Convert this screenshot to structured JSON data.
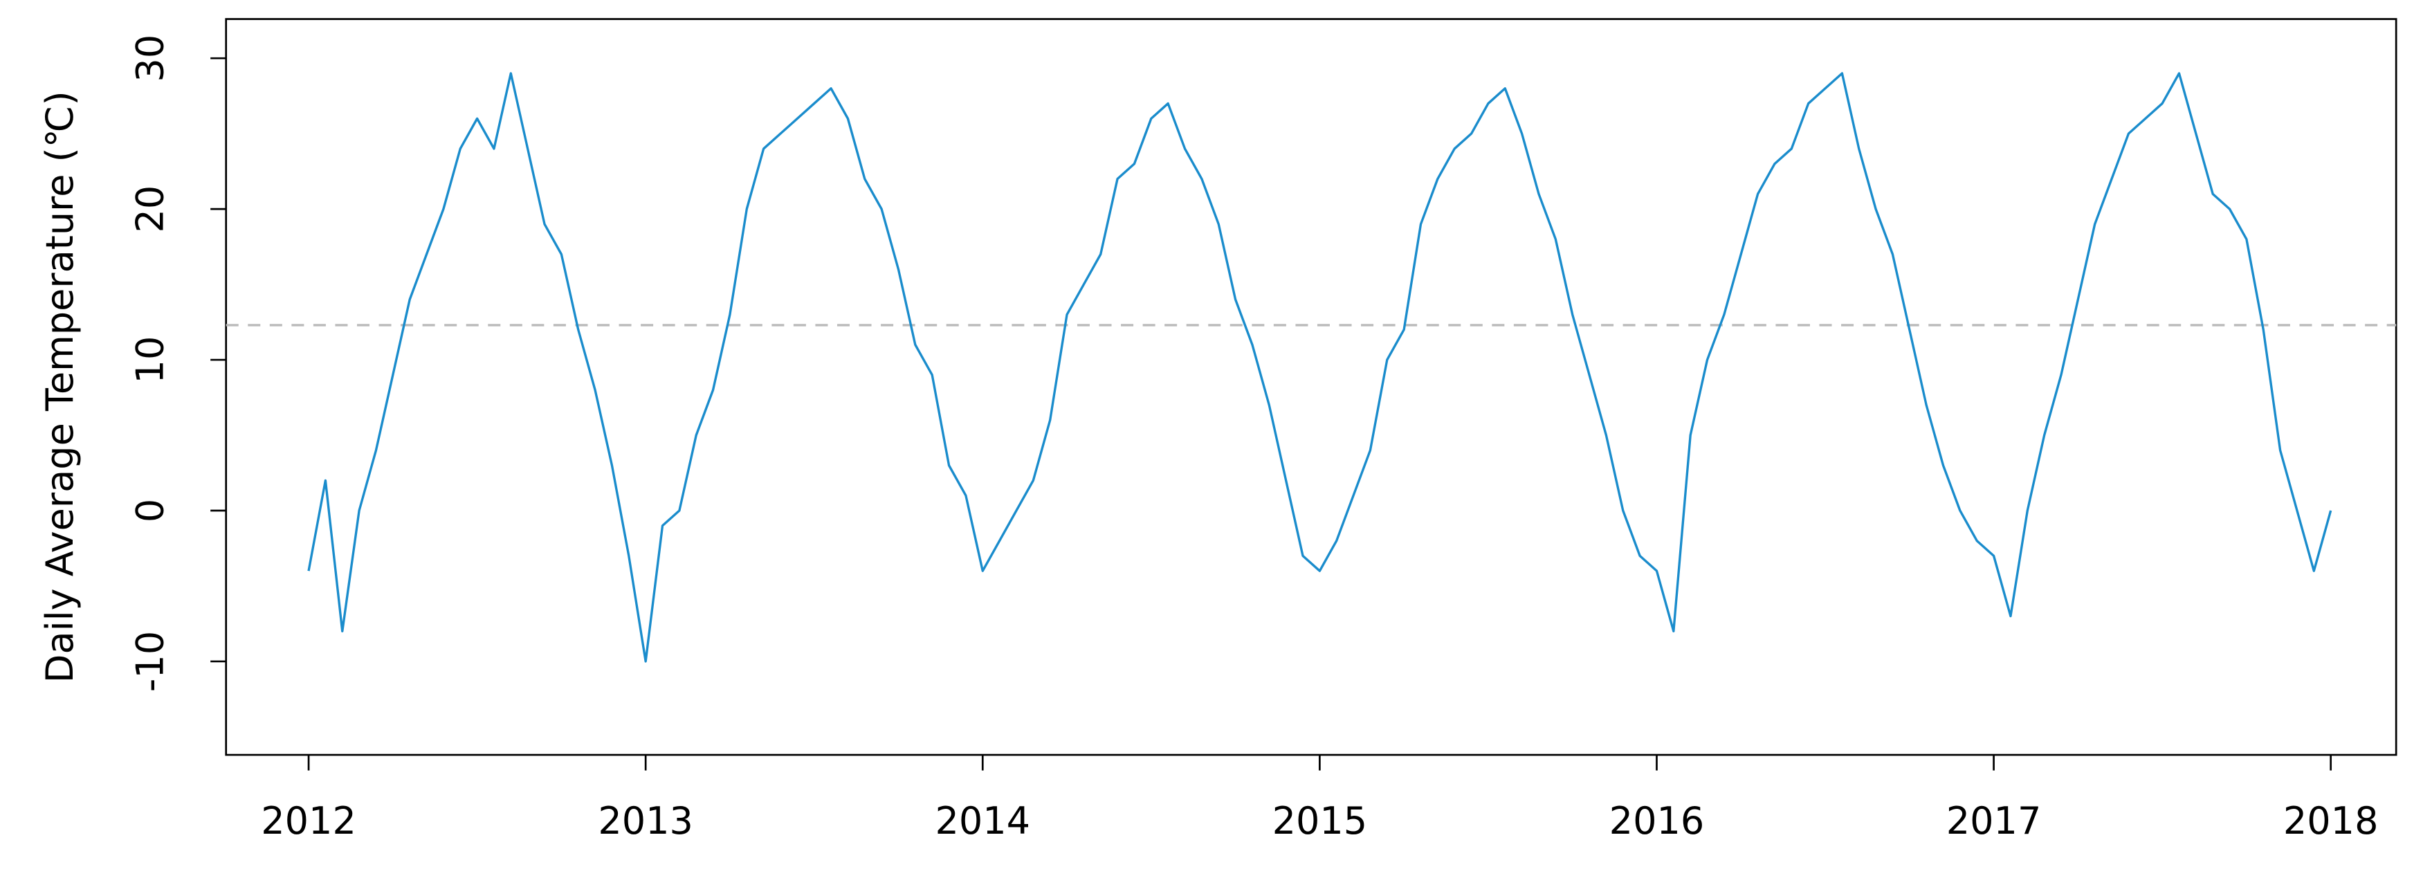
{
  "chart_data": {
    "type": "line",
    "y_label": "Daily Average Temperature (℃)",
    "color": "#1a8ccc",
    "hline": 12.3,
    "hline_color": "#bbbbbb",
    "xlim": [
      2011.755,
      2018.194
    ],
    "ylim": [
      -16.2,
      32.6
    ],
    "xticks": [
      2012,
      2013,
      2014,
      2015,
      2016,
      2017,
      2018
    ],
    "yticks": [
      -10,
      0,
      10,
      20,
      30
    ],
    "x": [
      2012.0,
      2012.05,
      2012.1,
      2012.15,
      2012.2,
      2012.25,
      2012.3,
      2012.35,
      2012.4,
      2012.45,
      2012.5,
      2012.55,
      2012.6,
      2012.65,
      2012.7,
      2012.75,
      2012.8,
      2012.85,
      2012.9,
      2012.95,
      2013.0,
      2013.05,
      2013.1,
      2013.15,
      2013.2,
      2013.25,
      2013.3,
      2013.35,
      2013.4,
      2013.45,
      2013.5,
      2013.55,
      2013.6,
      2013.65,
      2013.7,
      2013.75,
      2013.8,
      2013.85,
      2013.9,
      2013.95,
      2014.0,
      2014.05,
      2014.1,
      2014.15,
      2014.2,
      2014.25,
      2014.3,
      2014.35,
      2014.4,
      2014.45,
      2014.5,
      2014.55,
      2014.6,
      2014.65,
      2014.7,
      2014.75,
      2014.8,
      2014.85,
      2014.9,
      2014.95,
      2015.0,
      2015.05,
      2015.1,
      2015.15,
      2015.2,
      2015.25,
      2015.3,
      2015.35,
      2015.4,
      2015.45,
      2015.5,
      2015.55,
      2015.6,
      2015.65,
      2015.7,
      2015.75,
      2015.8,
      2015.85,
      2015.9,
      2015.95,
      2016.0,
      2016.05,
      2016.1,
      2016.15,
      2016.2,
      2016.25,
      2016.3,
      2016.35,
      2016.4,
      2016.45,
      2016.5,
      2016.55,
      2016.6,
      2016.65,
      2016.7,
      2016.75,
      2016.8,
      2016.85,
      2016.9,
      2016.95,
      2017.0,
      2017.05,
      2017.1,
      2017.15,
      2017.2,
      2017.25,
      2017.3,
      2017.35,
      2017.4,
      2017.45,
      2017.5,
      2017.55,
      2017.6,
      2017.65,
      2017.7,
      2017.75,
      2017.8,
      2017.85,
      2017.9,
      2017.95,
      2018.0
    ],
    "values": [
      -4,
      2,
      -8,
      0,
      4,
      9,
      14,
      17,
      20,
      24,
      26,
      24,
      29,
      24,
      19,
      17,
      12,
      8,
      3,
      -3,
      -10,
      -1,
      0,
      5,
      8,
      13,
      20,
      24,
      25,
      26,
      27,
      28,
      26,
      22,
      20,
      16,
      11,
      9,
      3,
      1,
      -4,
      -2,
      0,
      2,
      6,
      13,
      15,
      17,
      22,
      23,
      26,
      27,
      24,
      22,
      19,
      14,
      11,
      7,
      2,
      -3,
      -4,
      -2,
      1,
      4,
      10,
      12,
      19,
      22,
      24,
      25,
      27,
      28,
      25,
      21,
      18,
      13,
      9,
      5,
      0,
      -3,
      -4,
      -8,
      5,
      10,
      13,
      17,
      21,
      23,
      24,
      27,
      28,
      29,
      24,
      20,
      17,
      12,
      7,
      3,
      0,
      -2,
      -3,
      -7,
      0,
      5,
      9,
      14,
      19,
      22,
      25,
      26,
      27,
      29,
      25,
      21,
      20,
      18,
      12,
      4,
      0,
      -4,
      0
    ]
  }
}
